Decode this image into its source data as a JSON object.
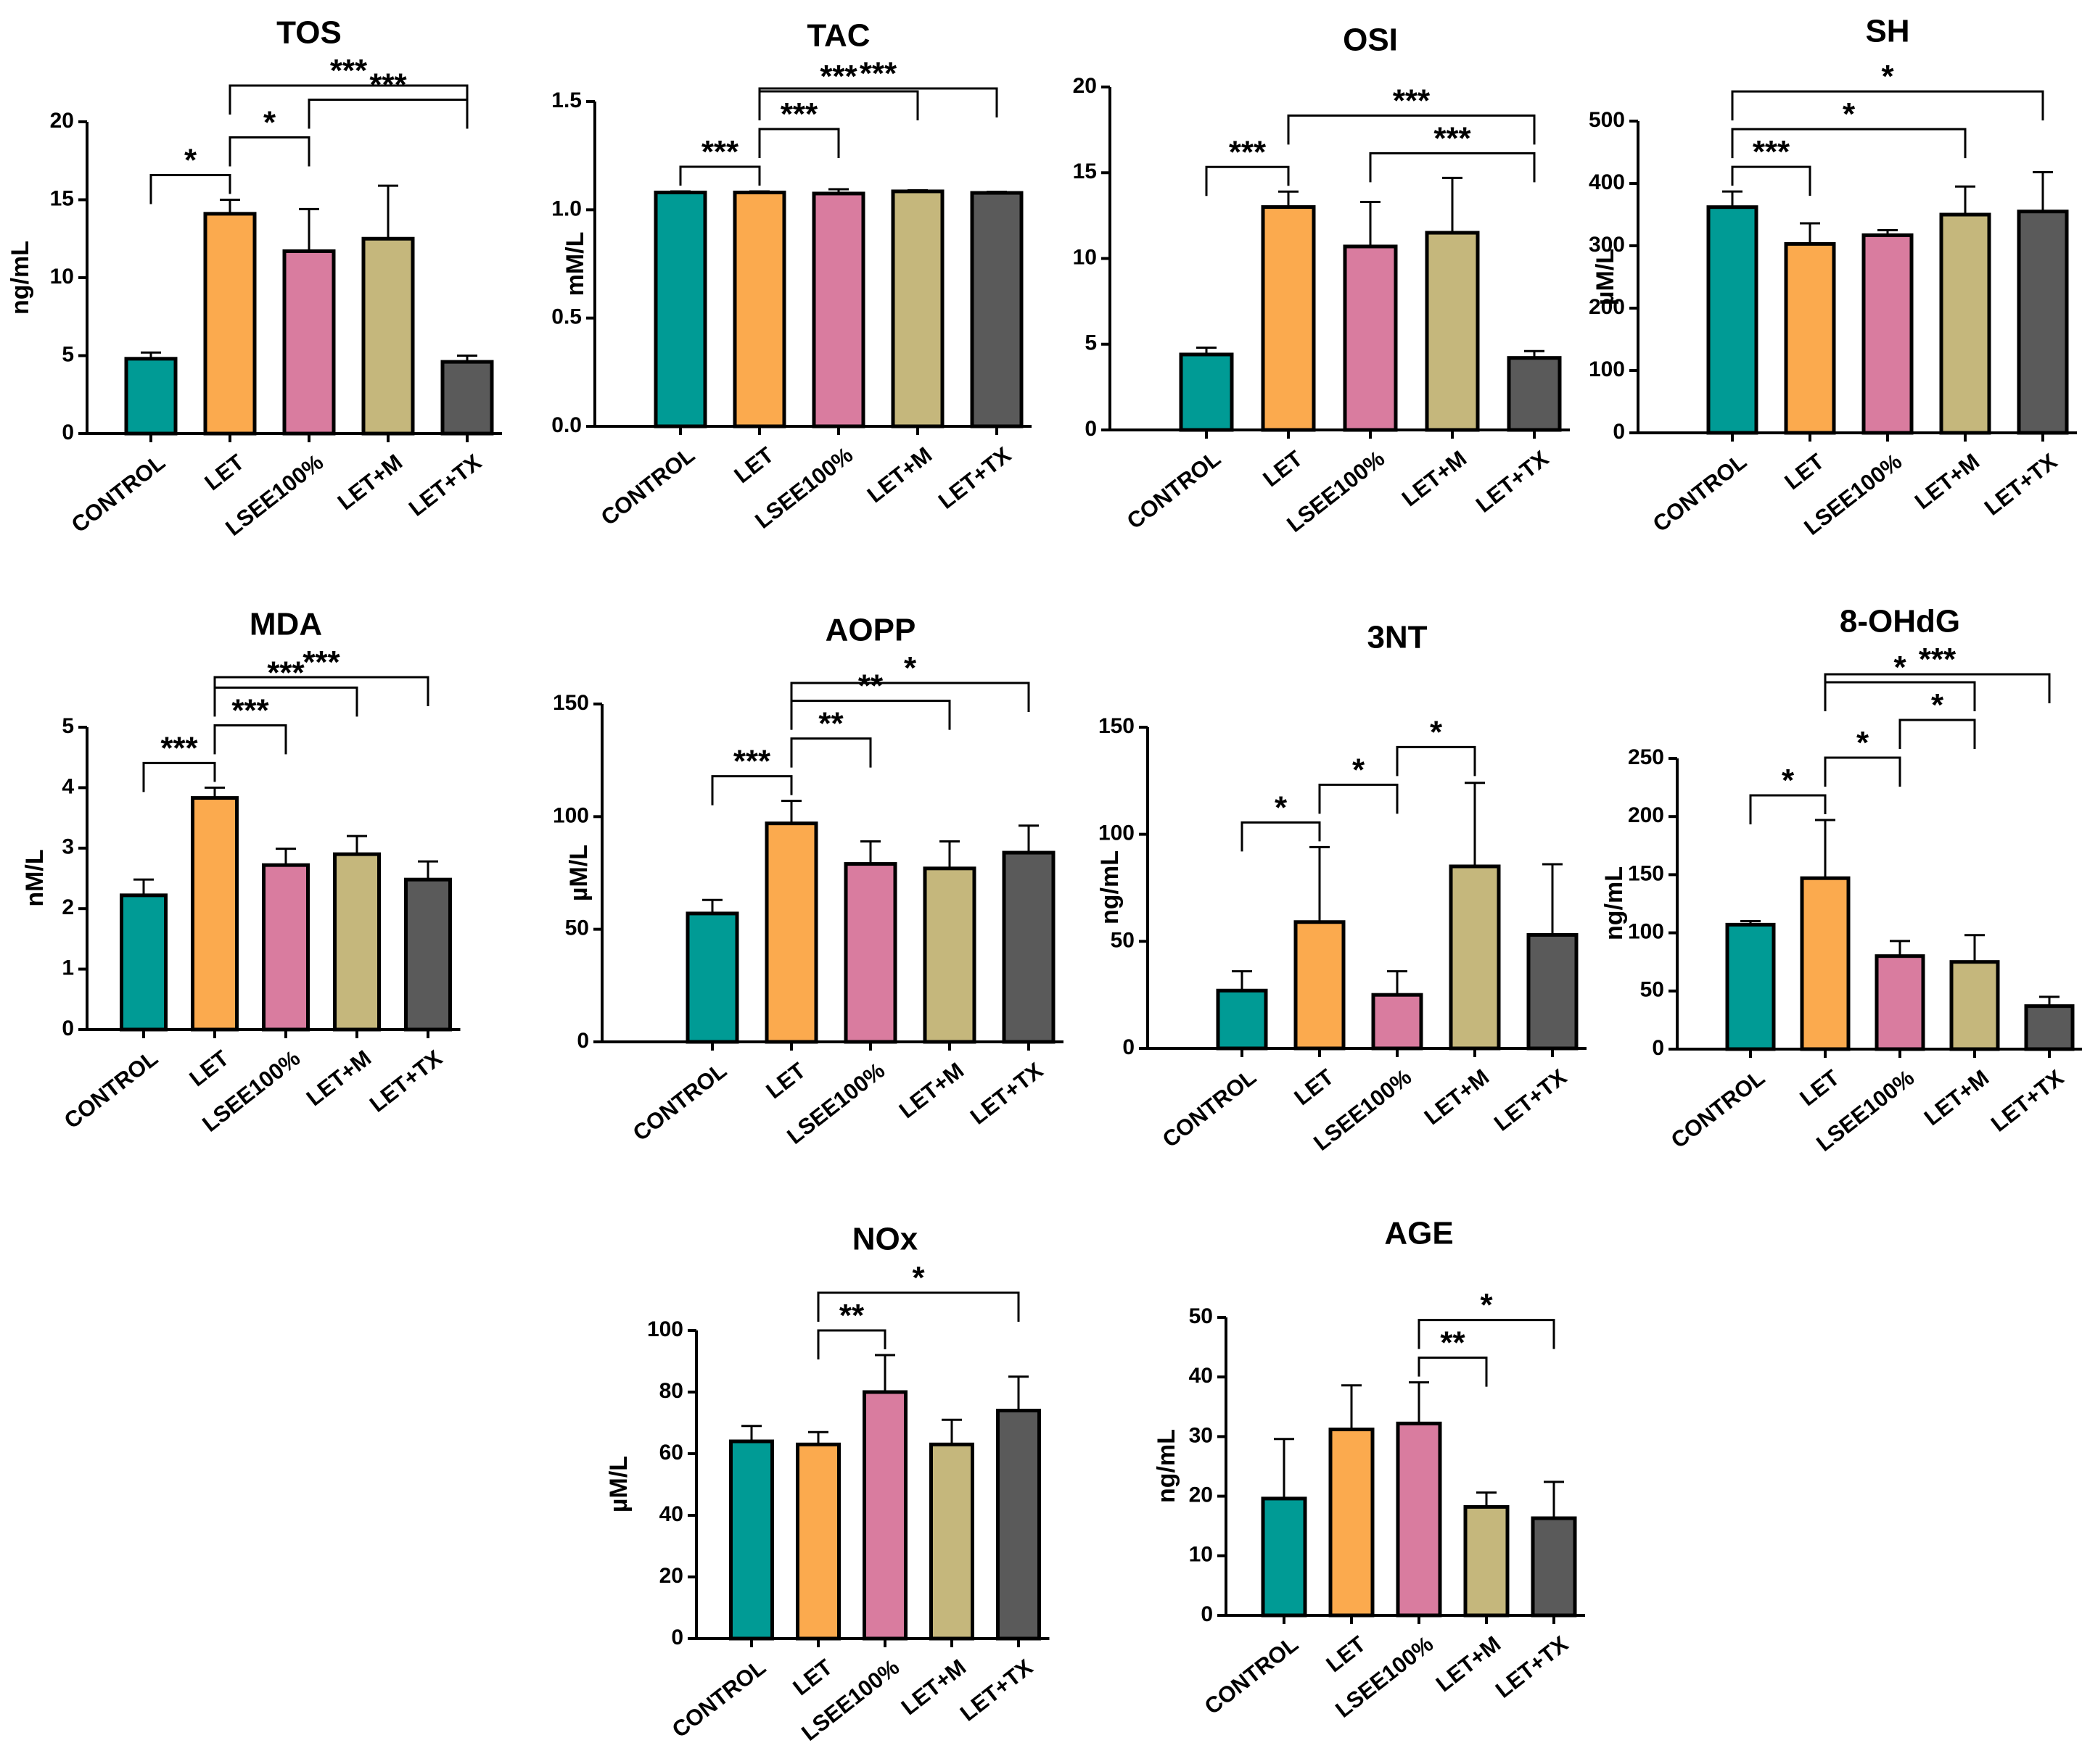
{
  "chart_data": [
    {
      "type": "bar",
      "title": "TOS",
      "ylabel": "ng/mL",
      "categories": [
        "CONTROL",
        "LET",
        "LSEE100%",
        "LET+M",
        "LET+TX"
      ],
      "values": [
        4.8,
        14.1,
        11.7,
        12.5,
        4.6
      ],
      "errors": [
        0.4,
        0.9,
        2.7,
        3.4,
        0.4
      ],
      "ylim": [
        0,
        20
      ],
      "yticks": [
        "0",
        "5",
        "10",
        "15",
        "20"
      ],
      "colors": [
        "#009B95",
        "#FBAA4E",
        "#D97C9F",
        "#C5B77C",
        "#5A5A5A"
      ],
      "brackets": [
        {
          "from": 0,
          "to": 1,
          "label": "*"
        },
        {
          "from": 1,
          "to": 2,
          "label": "*"
        },
        {
          "from": 2,
          "to": 4,
          "label": "***"
        },
        {
          "from": 1,
          "to": 4,
          "label": "***"
        }
      ]
    },
    {
      "type": "bar",
      "title": "TAC",
      "ylabel": "mM/L",
      "categories": [
        "CONTROL",
        "LET",
        "LSEE100%",
        "LET+M",
        "LET+TX"
      ],
      "values": [
        1.08,
        1.08,
        1.075,
        1.085,
        1.078
      ],
      "errors": [
        0.005,
        0.005,
        0.02,
        0.005,
        0.005
      ],
      "ylim": [
        0,
        1.5
      ],
      "yticks": [
        "0.0",
        "0.5",
        "1.0",
        "1.5"
      ],
      "colors": [
        "#009B95",
        "#FBAA4E",
        "#D97C9F",
        "#C5B77C",
        "#5A5A5A"
      ],
      "brackets": [
        {
          "from": 0,
          "to": 1,
          "label": "***"
        },
        {
          "from": 1,
          "to": 2,
          "label": "***"
        },
        {
          "from": 1,
          "to": 3,
          "label": "***"
        },
        {
          "from": 1,
          "to": 4,
          "label": "***"
        }
      ]
    },
    {
      "type": "bar",
      "title": "OSI",
      "ylabel": "",
      "categories": [
        "CONTROL",
        "LET",
        "LSEE100%",
        "LET+M",
        "LET+TX"
      ],
      "values": [
        4.4,
        13.0,
        10.7,
        11.5,
        4.2
      ],
      "errors": [
        0.4,
        0.9,
        2.6,
        3.2,
        0.4
      ],
      "ylim": [
        0,
        20
      ],
      "yticks": [
        "0",
        "5",
        "10",
        "15",
        "20"
      ],
      "colors": [
        "#009B95",
        "#FBAA4E",
        "#D97C9F",
        "#C5B77C",
        "#5A5A5A"
      ],
      "brackets": [
        {
          "from": 0,
          "to": 1,
          "label": "***"
        },
        {
          "from": 2,
          "to": 4,
          "label": "***"
        },
        {
          "from": 1,
          "to": 4,
          "label": "***"
        }
      ]
    },
    {
      "type": "bar",
      "title": "SH",
      "ylabel": "µM/L",
      "categories": [
        "CONTROL",
        "LET",
        "LSEE100%",
        "LET+M",
        "LET+TX"
      ],
      "values": [
        362,
        303,
        317,
        350,
        355
      ],
      "errors": [
        25,
        33,
        8,
        45,
        63
      ],
      "ylim": [
        0,
        500
      ],
      "yticks": [
        "0",
        "100",
        "200",
        "300",
        "400",
        "500"
      ],
      "colors": [
        "#009B95",
        "#FBAA4E",
        "#D97C9F",
        "#C5B77C",
        "#5A5A5A"
      ],
      "brackets": [
        {
          "from": 0,
          "to": 1,
          "label": "***"
        },
        {
          "from": 0,
          "to": 3,
          "label": "*"
        },
        {
          "from": 0,
          "to": 4,
          "label": "*"
        }
      ]
    },
    {
      "type": "bar",
      "title": "MDA",
      "ylabel": "nM/L",
      "categories": [
        "CONTROL",
        "LET",
        "LSEE100%",
        "LET+M",
        "LET+TX"
      ],
      "values": [
        2.22,
        3.83,
        2.72,
        2.9,
        2.48
      ],
      "errors": [
        0.26,
        0.17,
        0.27,
        0.3,
        0.3
      ],
      "ylim": [
        0,
        5
      ],
      "yticks": [
        "0",
        "1",
        "2",
        "3",
        "4",
        "5"
      ],
      "colors": [
        "#009B95",
        "#FBAA4E",
        "#D97C9F",
        "#C5B77C",
        "#5A5A5A"
      ],
      "brackets": [
        {
          "from": 0,
          "to": 1,
          "label": "***"
        },
        {
          "from": 1,
          "to": 2,
          "label": "***"
        },
        {
          "from": 1,
          "to": 3,
          "label": "***"
        },
        {
          "from": 1,
          "to": 4,
          "label": "***"
        }
      ]
    },
    {
      "type": "bar",
      "title": "AOPP",
      "ylabel": "µM/L",
      "categories": [
        "CONTROL",
        "LET",
        "LSEE100%",
        "LET+M",
        "LET+TX"
      ],
      "values": [
        57,
        97,
        79,
        77,
        84
      ],
      "errors": [
        6,
        10,
        10,
        12,
        12
      ],
      "ylim": [
        0,
        150
      ],
      "yticks": [
        "0",
        "50",
        "100",
        "150"
      ],
      "colors": [
        "#009B95",
        "#FBAA4E",
        "#D97C9F",
        "#C5B77C",
        "#5A5A5A"
      ],
      "brackets": [
        {
          "from": 0,
          "to": 1,
          "label": "***"
        },
        {
          "from": 1,
          "to": 2,
          "label": "**"
        },
        {
          "from": 1,
          "to": 3,
          "label": "**"
        },
        {
          "from": 1,
          "to": 4,
          "label": "*"
        }
      ]
    },
    {
      "type": "bar",
      "title": "3NT",
      "ylabel": "ng/mL",
      "categories": [
        "CONTROL",
        "LET",
        "LSEE100%",
        "LET+M",
        "LET+TX"
      ],
      "values": [
        27,
        59,
        25,
        85,
        53
      ],
      "errors": [
        9,
        35,
        11,
        39,
        33
      ],
      "ylim": [
        0,
        150
      ],
      "yticks": [
        "0",
        "50",
        "100",
        "150"
      ],
      "colors": [
        "#009B95",
        "#FBAA4E",
        "#D97C9F",
        "#C5B77C",
        "#5A5A5A"
      ],
      "brackets": [
        {
          "from": 0,
          "to": 1,
          "label": "*"
        },
        {
          "from": 1,
          "to": 2,
          "label": "*"
        },
        {
          "from": 2,
          "to": 3,
          "label": "*"
        }
      ]
    },
    {
      "type": "bar",
      "title": "8-OHdG",
      "ylabel": "ng/mL",
      "categories": [
        "CONTROL",
        "LET",
        "LSEE100%",
        "LET+M",
        "LET+TX"
      ],
      "values": [
        107,
        147,
        80,
        75,
        37
      ],
      "errors": [
        3,
        50,
        13,
        23,
        8
      ],
      "ylim": [
        0,
        250
      ],
      "yticks": [
        "0",
        "50",
        "100",
        "150",
        "200",
        "250"
      ],
      "colors": [
        "#009B95",
        "#FBAA4E",
        "#D97C9F",
        "#C5B77C",
        "#5A5A5A"
      ],
      "brackets": [
        {
          "from": 0,
          "to": 1,
          "label": "*"
        },
        {
          "from": 1,
          "to": 2,
          "label": "*"
        },
        {
          "from": 2,
          "to": 3,
          "label": "*"
        },
        {
          "from": 1,
          "to": 3,
          "label": "*"
        },
        {
          "from": 1,
          "to": 4,
          "label": "***"
        }
      ]
    },
    {
      "type": "bar",
      "title": "NOx",
      "ylabel": "µM/L",
      "categories": [
        "CONTROL",
        "LET",
        "LSEE100%",
        "LET+M",
        "LET+TX"
      ],
      "values": [
        64,
        63,
        80,
        63,
        74
      ],
      "errors": [
        5,
        4,
        12,
        8,
        11
      ],
      "ylim": [
        0,
        100
      ],
      "yticks": [
        "0",
        "20",
        "40",
        "60",
        "80",
        "100"
      ],
      "colors": [
        "#009B95",
        "#FBAA4E",
        "#D97C9F",
        "#C5B77C",
        "#5A5A5A"
      ],
      "brackets": [
        {
          "from": 1,
          "to": 2,
          "label": "**"
        },
        {
          "from": 1,
          "to": 4,
          "label": "*"
        }
      ]
    },
    {
      "type": "bar",
      "title": "AGE",
      "ylabel": "ng/mL",
      "categories": [
        "CONTROL",
        "LET",
        "LSEE100%",
        "LET+M",
        "LET+TX"
      ],
      "values": [
        19.6,
        31.2,
        32.2,
        18.2,
        16.3
      ],
      "errors": [
        10,
        7.4,
        6.9,
        2.4,
        6.1
      ],
      "ylim": [
        0,
        50
      ],
      "yticks": [
        "0",
        "10",
        "20",
        "30",
        "40",
        "50"
      ],
      "colors": [
        "#009B95",
        "#FBAA4E",
        "#D97C9F",
        "#C5B77C",
        "#5A5A5A"
      ],
      "brackets": [
        {
          "from": 2,
          "to": 3,
          "label": "**"
        },
        {
          "from": 2,
          "to": 4,
          "label": "*"
        }
      ]
    }
  ]
}
